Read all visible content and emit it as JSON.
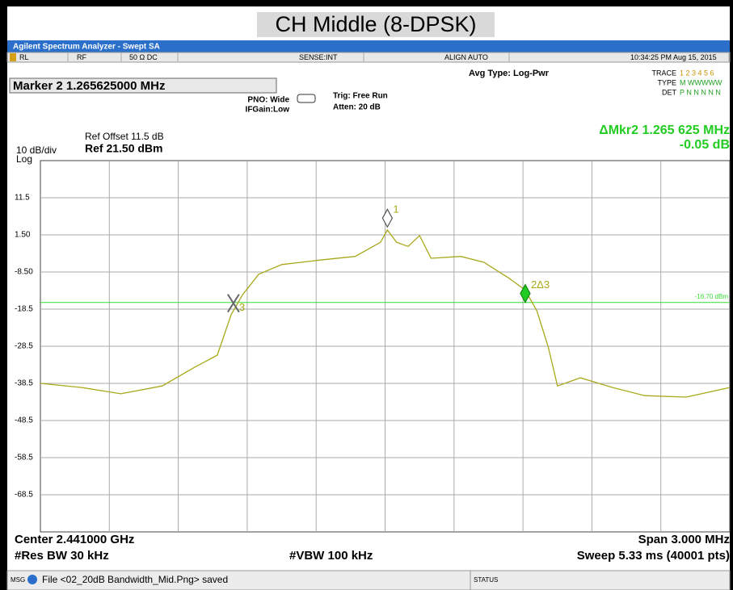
{
  "page_title": "CH Middle (8-DPSK)",
  "window_title": "Agilent Spectrum Analyzer - Swept SA",
  "status_cells": [
    "RL",
    "RF",
    "50 Ω  DC",
    "SENSE:INT",
    "ALIGN AUTO",
    "10:34:25 PM Aug 15, 2015"
  ],
  "marker_box": "Marker 2 1.265625000 MHz",
  "settings": {
    "pno": "PNO: Wide",
    "ifgain": "IFGain:Low",
    "trig": "Trig: Free Run",
    "atten": "Atten: 20 dB",
    "avg_type": "Avg Type: Log-Pwr",
    "trace_label": "TRACE",
    "trace_nums": "1 2 3 4 5 6",
    "type_label": "TYPE",
    "type_vals": "M WWWWW",
    "det_label": "DET",
    "det_vals": "P N N N N N",
    "ref_offset": "Ref Offset 11.5 dB",
    "ref_level": "Ref 21.50 dBm",
    "scale": "10 dB/div",
    "scale_type": "Log",
    "delta_marker": "ΔMkr2 1.265 625 MHz",
    "delta_value": "-0.05 dB"
  },
  "chart_data": {
    "type": "line",
    "xlim": [
      2.4395,
      2.4425
    ],
    "ylim": [
      -78.5,
      21.5
    ],
    "yticks": [
      11.5,
      {
        "value": 1.5,
        "label": "1.50"
      },
      {
        "value": -8.5,
        "label": "-8.50"
      },
      -18.5,
      -28.5,
      -38.5,
      -48.5,
      -58.5,
      -68.5
    ],
    "grid": true,
    "series": [
      {
        "name": "Trace 1",
        "color": "#a8a81a",
        "x": [
          2.4395,
          2.43968,
          2.43985,
          2.44003,
          2.44017,
          2.44027,
          2.44033,
          2.44038,
          2.44045,
          2.44055,
          2.44073,
          2.44087,
          2.44098,
          2.44101,
          2.44105,
          2.4411,
          2.44115,
          2.4412,
          2.44133,
          2.44143,
          2.44154,
          2.44161,
          2.44166,
          2.44171,
          2.44175,
          2.44185,
          2.44199,
          2.44213,
          2.44231,
          2.44242,
          2.4425
        ],
        "values": [
          -38.5,
          -39.6,
          -41.3,
          -39.2,
          -34.2,
          -30.9,
          -20.0,
          -14.6,
          -9.1,
          -6.5,
          -5.2,
          -4.3,
          -0.5,
          2.8,
          -0.5,
          -1.6,
          1.3,
          -4.8,
          -4.3,
          -5.9,
          -10.2,
          -13.4,
          -18.9,
          -28.7,
          -39.2,
          -37.0,
          -39.6,
          -41.8,
          -42.2,
          -40.7,
          -39.6
        ]
      }
    ],
    "display_line": {
      "value": -16.7,
      "label": "-16.70 dBm",
      "color": "#33dd33"
    },
    "markers": [
      {
        "label": "1",
        "x": 2.44101,
        "y": 6.0,
        "filled": false
      },
      {
        "label": "3",
        "x": 2.44034,
        "y": -16.9,
        "filled": false,
        "cross": true
      },
      {
        "label": "2Δ3",
        "x": 2.44161,
        "y": -14.3,
        "filled": true
      }
    ]
  },
  "footer": {
    "center": "Center 2.441000 GHz",
    "span": "Span 3.000 MHz",
    "rbw": "#Res BW 30 kHz",
    "vbw": "#VBW 100 kHz",
    "sweep": "Sweep  5.33 ms (40001 pts)"
  },
  "message_bar": {
    "msg": "MSG",
    "text": "File <02_20dB Bandwidth_Mid.Png> saved",
    "status": "STATUS"
  }
}
